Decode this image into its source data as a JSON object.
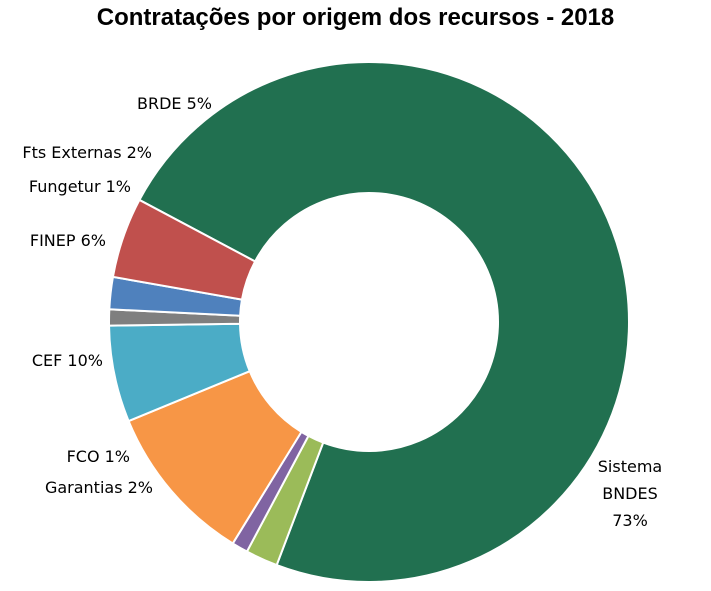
{
  "chart_data": {
    "type": "donut",
    "title": "Contratações por origem dos recursos - 2018",
    "slices": [
      {
        "key": "bndes",
        "label": "Sistema BNDES 73%",
        "label_lines": [
          "Sistema",
          "BNDES",
          "73%"
        ],
        "value": 73,
        "color": "#217050"
      },
      {
        "key": "garantias",
        "label": "Garantias 2%",
        "label_lines": [
          "Garantias 2%"
        ],
        "value": 2,
        "color": "#9bbb59"
      },
      {
        "key": "fco",
        "label": "FCO 1%",
        "label_lines": [
          "FCO 1%"
        ],
        "value": 1,
        "color": "#8064a2"
      },
      {
        "key": "cef",
        "label": "CEF 10%",
        "label_lines": [
          "CEF 10%"
        ],
        "value": 10,
        "color": "#f79646"
      },
      {
        "key": "finep",
        "label": "FINEP 6%",
        "label_lines": [
          "FINEP 6%"
        ],
        "value": 6,
        "color": "#4bacc6"
      },
      {
        "key": "fungetur",
        "label": "Fungetur 1%",
        "label_lines": [
          "Fungetur 1%"
        ],
        "value": 1,
        "color": "#7f7f7f"
      },
      {
        "key": "fts",
        "label": "Fts Externas 2%",
        "label_lines": [
          "Fts Externas 2%"
        ],
        "value": 2,
        "color": "#4f81bd"
      },
      {
        "key": "brde",
        "label": "BRDE 5%",
        "label_lines": [
          "BRDE 5%"
        ],
        "value": 5,
        "color": "#c0504d"
      }
    ]
  }
}
